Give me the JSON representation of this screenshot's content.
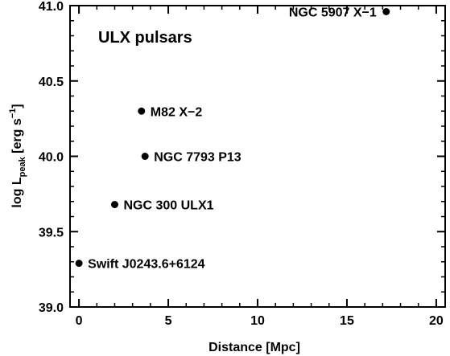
{
  "chart_data": {
    "type": "scatter",
    "title": "ULX pulsars",
    "xlabel": "Distance [Mpc]",
    "ylabel": {
      "prefix": "log L",
      "subscript": "peak",
      "unit_open": " [erg s",
      "superscript": "−1",
      "unit_close": "]"
    },
    "xlim": [
      -0.5,
      20.5
    ],
    "ylim": [
      39.0,
      41.0
    ],
    "xticks": [
      0,
      5,
      10,
      15,
      20
    ],
    "xtick_labels": [
      "0",
      "5",
      "10",
      "15",
      "20"
    ],
    "yticks": [
      39.0,
      39.5,
      40.0,
      40.5,
      41.0
    ],
    "ytick_labels": [
      "39.0",
      "39.5",
      "40.0",
      "40.5",
      "41.0"
    ],
    "grid": false,
    "points": [
      {
        "label": "Swift J0243.6+6124",
        "x": 0.0,
        "y": 39.29
      },
      {
        "label": "NGC 300 ULX1",
        "x": 2.0,
        "y": 39.68
      },
      {
        "label": "NGC 7793 P13",
        "x": 3.7,
        "y": 40.0
      },
      {
        "label": "M82 X−2",
        "x": 3.5,
        "y": 40.3
      },
      {
        "label": "NGC 5907 X−1",
        "x": 17.2,
        "y": 40.96
      }
    ]
  }
}
